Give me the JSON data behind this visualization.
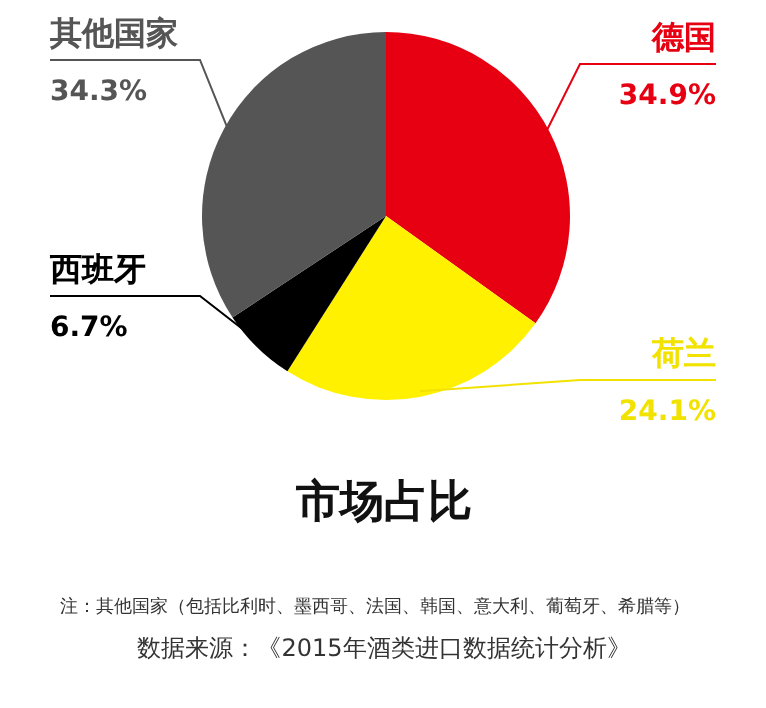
{
  "chart_data": {
    "type": "pie",
    "title": "市场占比",
    "categories": [
      "德国",
      "荷兰",
      "西班牙",
      "其他国家"
    ],
    "values": [
      34.9,
      24.1,
      6.7,
      34.3
    ],
    "value_labels": [
      "34.9%",
      "24.1%",
      "6.7%",
      "34.3%"
    ],
    "colors": [
      "#e60012",
      "#fff100",
      "#000000",
      "#555555"
    ],
    "annotations": [
      "注：其他国家（包括比利时、墨西哥、法国、韩国、意大利、葡萄牙、希腊等）",
      "数据来源：《2015年酒类进口数据统计分析》"
    ]
  }
}
